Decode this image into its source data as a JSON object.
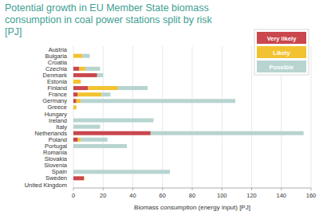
{
  "chart_data": {
    "type": "bar",
    "orientation": "horizontal",
    "stacked": true,
    "title": "Potential growth in EU Member State biomass consumption in coal power stations split by risk [PJ]",
    "x_label": "Biomass consumption (energy input) [PJ]",
    "categories": [
      "Austria",
      "Bulgaria",
      "Croatia",
      "Czechia",
      "Denmark",
      "Estonia",
      "Finland",
      "France",
      "Germany",
      "Greece",
      "Hungary",
      "Ireland",
      "Italy",
      "Netherlands",
      "Poland",
      "Portugal",
      "Romania",
      "Slovakia",
      "Slovenia",
      "Spain",
      "Sweden",
      "United Kingdom"
    ],
    "series": [
      {
        "name": "Very likely",
        "color": "#c9474d",
        "values": [
          0,
          0,
          0,
          4,
          16,
          0,
          10,
          3,
          2,
          0,
          0,
          0,
          0,
          52,
          3,
          0,
          0,
          0,
          0,
          0,
          7,
          0
        ]
      },
      {
        "name": "Likely",
        "color": "#f2c230",
        "values": [
          0,
          6,
          0,
          4,
          0,
          5,
          20,
          16,
          3,
          2,
          0,
          0,
          0,
          0,
          2,
          0,
          0,
          0,
          0,
          0,
          0.5,
          0
        ]
      },
      {
        "name": "Possible",
        "color": "#b7d4d0",
        "values": [
          0,
          5,
          0,
          10,
          4,
          0,
          20,
          6,
          104,
          0,
          0,
          54,
          18,
          103,
          18,
          36,
          0,
          0,
          0,
          65,
          0,
          0
        ]
      }
    ],
    "xlim": [
      0,
      160
    ],
    "xticks": [
      0,
      20,
      40,
      60,
      80,
      100,
      120,
      140,
      160
    ],
    "grid": true,
    "legend": "top-right"
  }
}
